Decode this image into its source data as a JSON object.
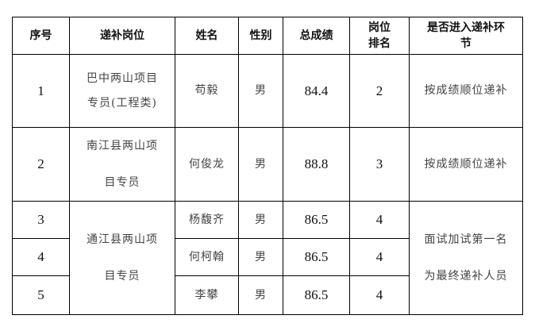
{
  "headers": [
    "序号",
    "递补岗位",
    "姓名",
    "性别",
    "总成绩",
    "岗位\n排名",
    "是否进入递补环\n节"
  ],
  "rows": [
    {
      "no": "1",
      "position": "巴中两山项目\n专员(工程类)",
      "name": "苟毅",
      "gender": "男",
      "score": "84.4",
      "rank": "2",
      "result": "按成绩顺位递补"
    },
    {
      "no": "2",
      "position": "南江县两山项\n目专员",
      "name": "何俊龙",
      "gender": "男",
      "score": "88.8",
      "rank": "3",
      "result": "按成绩顺位递补"
    },
    {
      "no": "3",
      "position": "通江县两山项\n目专员",
      "name": "杨馥齐",
      "gender": "男",
      "score": "86.5",
      "rank": "4",
      "result": "面试加试第一名\n为最终递补人员"
    },
    {
      "no": "4",
      "name": "何柯翰",
      "gender": "男",
      "score": "86.5",
      "rank": "4"
    },
    {
      "no": "5",
      "name": "李攀",
      "gender": "男",
      "score": "86.5",
      "rank": "4"
    }
  ]
}
